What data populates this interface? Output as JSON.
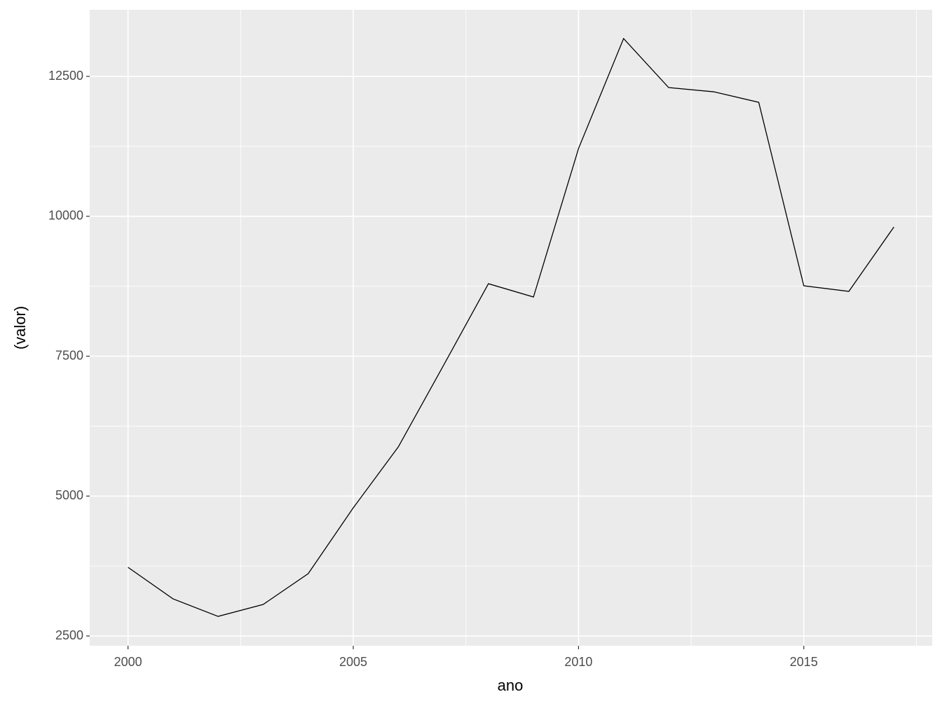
{
  "chart_data": {
    "type": "line",
    "x_label": "ano",
    "y_label": "(valor)",
    "x": [
      2000,
      2001,
      2002,
      2003,
      2004,
      2005,
      2006,
      2007,
      2008,
      2009,
      2010,
      2011,
      2012,
      2013,
      2014,
      2015,
      2016,
      2017
    ],
    "series": [
      {
        "color": "#000000",
        "values": [
          3727,
          3163,
          2850,
          3063,
          3614,
          4790,
          5879,
          7331,
          8795,
          8558,
          11211,
          13176,
          12300,
          12225,
          12037,
          8758,
          8658,
          9809
        ]
      }
    ],
    "xlim": [
      1999.15,
      2017.85
    ],
    "ylim": [
      2325,
      13690
    ],
    "xticks": [
      2000,
      2005,
      2010,
      2015
    ],
    "yticks": [
      2500,
      5000,
      7500,
      10000,
      12500
    ],
    "minor_xticks": [
      2002.5,
      2007.5,
      2012.5,
      2017.5
    ],
    "minor_yticks": [
      3750,
      6250,
      8750,
      11250
    ],
    "grid": true
  }
}
